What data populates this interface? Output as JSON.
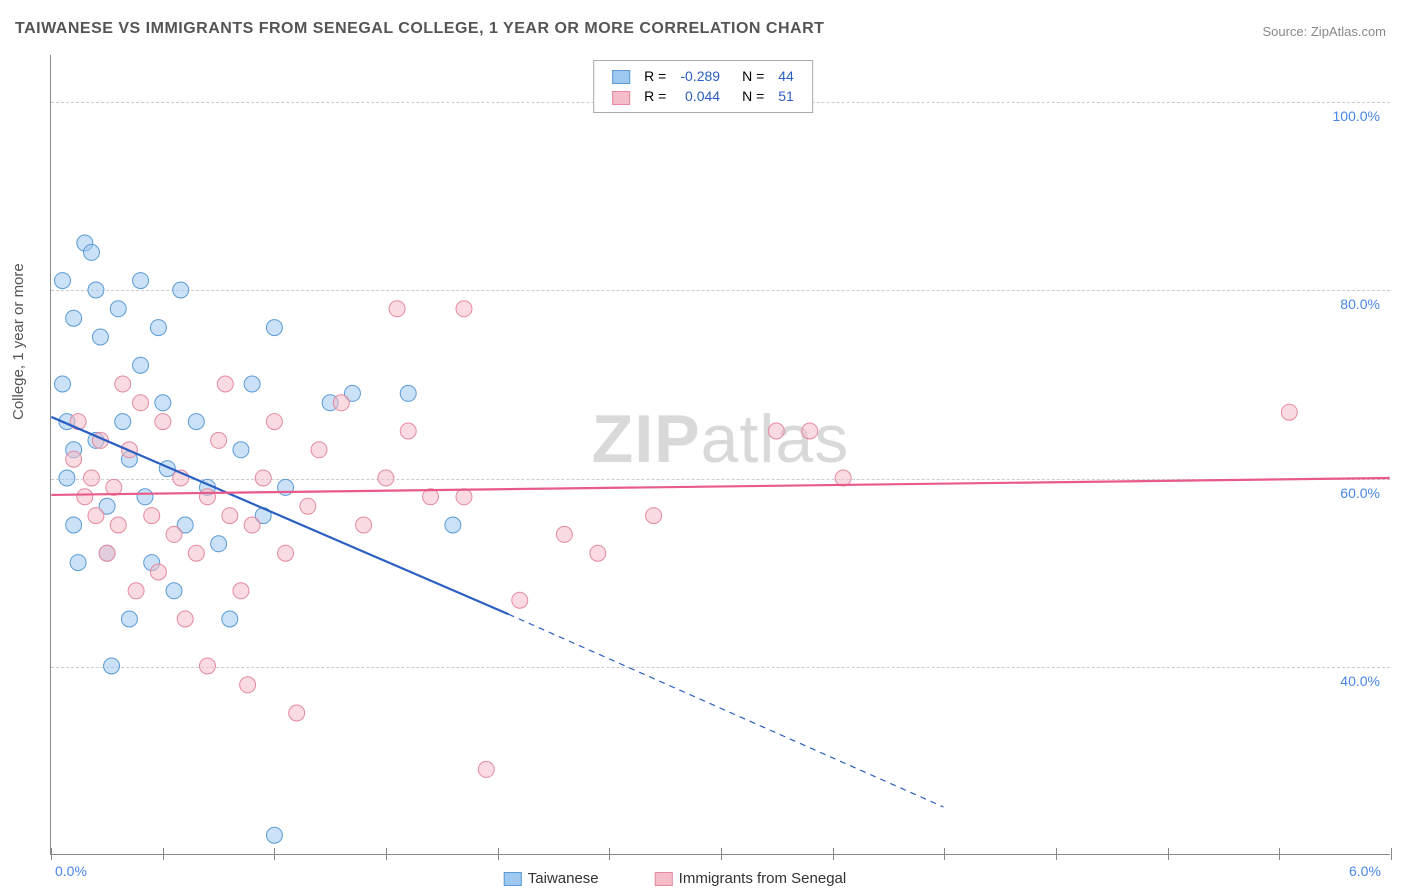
{
  "title": "TAIWANESE VS IMMIGRANTS FROM SENEGAL COLLEGE, 1 YEAR OR MORE CORRELATION CHART",
  "source_label": "Source: ZipAtlas.com",
  "ylabel": "College, 1 year or more",
  "watermark": {
    "bold": "ZIP",
    "light": "atlas"
  },
  "chart": {
    "type": "scatter",
    "xlim": [
      0.0,
      6.0
    ],
    "ylim": [
      20.0,
      105.0
    ],
    "x_ticks": [
      0.0,
      0.5,
      1.0,
      1.5,
      2.0,
      2.5,
      3.0,
      3.5,
      4.0,
      4.5,
      5.0,
      5.5,
      6.0
    ],
    "x_tick_labels_shown": {
      "0.0": "0.0%",
      "6.0": "6.0%"
    },
    "y_gridlines": [
      40.0,
      60.0,
      80.0,
      100.0
    ],
    "y_tick_labels": {
      "40.0": "40.0%",
      "60.0": "60.0%",
      "80.0": "80.0%",
      "100.0": "100.0%"
    },
    "background_color": "#ffffff",
    "grid_color": "#cccccc",
    "axis_color": "#888888",
    "tick_label_color": "#4a86e8",
    "marker_radius": 8,
    "marker_opacity": 0.55,
    "line_width": 2.2,
    "series": [
      {
        "name": "Taiwanese",
        "fill_color": "#9ec8f0",
        "stroke_color": "#5a9bd5",
        "line_color": "#2b5fc1",
        "R": "-0.289",
        "N": "44",
        "trend": {
          "x1": 0.0,
          "y1": 66.5,
          "x2": 2.05,
          "y2": 45.5,
          "extend_x2": 4.0,
          "extend_y2": 25.0
        },
        "points": [
          [
            0.05,
            81
          ],
          [
            0.05,
            70
          ],
          [
            0.07,
            66
          ],
          [
            0.07,
            60
          ],
          [
            0.1,
            77
          ],
          [
            0.1,
            63
          ],
          [
            0.1,
            55
          ],
          [
            0.12,
            51
          ],
          [
            0.15,
            85
          ],
          [
            0.18,
            84
          ],
          [
            0.2,
            80
          ],
          [
            0.2,
            64
          ],
          [
            0.22,
            75
          ],
          [
            0.25,
            57
          ],
          [
            0.25,
            52
          ],
          [
            0.27,
            40
          ],
          [
            0.3,
            78
          ],
          [
            0.32,
            66
          ],
          [
            0.35,
            62
          ],
          [
            0.35,
            45
          ],
          [
            0.4,
            81
          ],
          [
            0.42,
            58
          ],
          [
            0.45,
            51
          ],
          [
            0.48,
            76
          ],
          [
            0.5,
            68
          ],
          [
            0.52,
            61
          ],
          [
            0.55,
            48
          ],
          [
            0.58,
            80
          ],
          [
            0.6,
            55
          ],
          [
            0.65,
            66
          ],
          [
            0.7,
            59
          ],
          [
            0.75,
            53
          ],
          [
            0.8,
            45
          ],
          [
            0.85,
            63
          ],
          [
            0.9,
            70
          ],
          [
            0.95,
            56
          ],
          [
            1.0,
            76
          ],
          [
            1.0,
            22
          ],
          [
            1.05,
            59
          ],
          [
            1.25,
            68
          ],
          [
            1.35,
            69
          ],
          [
            1.6,
            69
          ],
          [
            1.8,
            55
          ],
          [
            0.4,
            72
          ]
        ]
      },
      {
        "name": "Immigrants from Senegal",
        "fill_color": "#f4bdc9",
        "stroke_color": "#e48aa0",
        "line_color": "#e85a8a",
        "R": "0.044",
        "N": "51",
        "trend": {
          "x1": 0.0,
          "y1": 58.2,
          "x2": 6.0,
          "y2": 60.0
        },
        "points": [
          [
            0.1,
            62
          ],
          [
            0.12,
            66
          ],
          [
            0.15,
            58
          ],
          [
            0.18,
            60
          ],
          [
            0.2,
            56
          ],
          [
            0.22,
            64
          ],
          [
            0.25,
            52
          ],
          [
            0.28,
            59
          ],
          [
            0.3,
            55
          ],
          [
            0.32,
            70
          ],
          [
            0.35,
            63
          ],
          [
            0.38,
            48
          ],
          [
            0.4,
            68
          ],
          [
            0.45,
            56
          ],
          [
            0.48,
            50
          ],
          [
            0.5,
            66
          ],
          [
            0.55,
            54
          ],
          [
            0.58,
            60
          ],
          [
            0.6,
            45
          ],
          [
            0.65,
            52
          ],
          [
            0.7,
            58
          ],
          [
            0.75,
            64
          ],
          [
            0.78,
            70
          ],
          [
            0.8,
            56
          ],
          [
            0.85,
            48
          ],
          [
            0.88,
            38
          ],
          [
            0.9,
            55
          ],
          [
            0.95,
            60
          ],
          [
            1.0,
            66
          ],
          [
            1.05,
            52
          ],
          [
            1.1,
            35
          ],
          [
            1.15,
            57
          ],
          [
            1.2,
            63
          ],
          [
            1.3,
            68
          ],
          [
            1.4,
            55
          ],
          [
            1.5,
            60
          ],
          [
            1.55,
            78
          ],
          [
            1.6,
            65
          ],
          [
            1.7,
            58
          ],
          [
            1.85,
            78
          ],
          [
            1.85,
            58
          ],
          [
            1.95,
            29
          ],
          [
            2.1,
            47
          ],
          [
            2.3,
            54
          ],
          [
            2.45,
            52
          ],
          [
            2.7,
            56
          ],
          [
            3.25,
            65
          ],
          [
            3.4,
            65
          ],
          [
            3.55,
            60
          ],
          [
            5.55,
            67
          ],
          [
            0.7,
            40
          ]
        ]
      }
    ],
    "legend_bottom": [
      {
        "label": "Taiwanese",
        "fill": "#9ec8f0",
        "stroke": "#5a9bd5"
      },
      {
        "label": "Immigrants from Senegal",
        "fill": "#f4bdc9",
        "stroke": "#e48aa0"
      }
    ]
  }
}
